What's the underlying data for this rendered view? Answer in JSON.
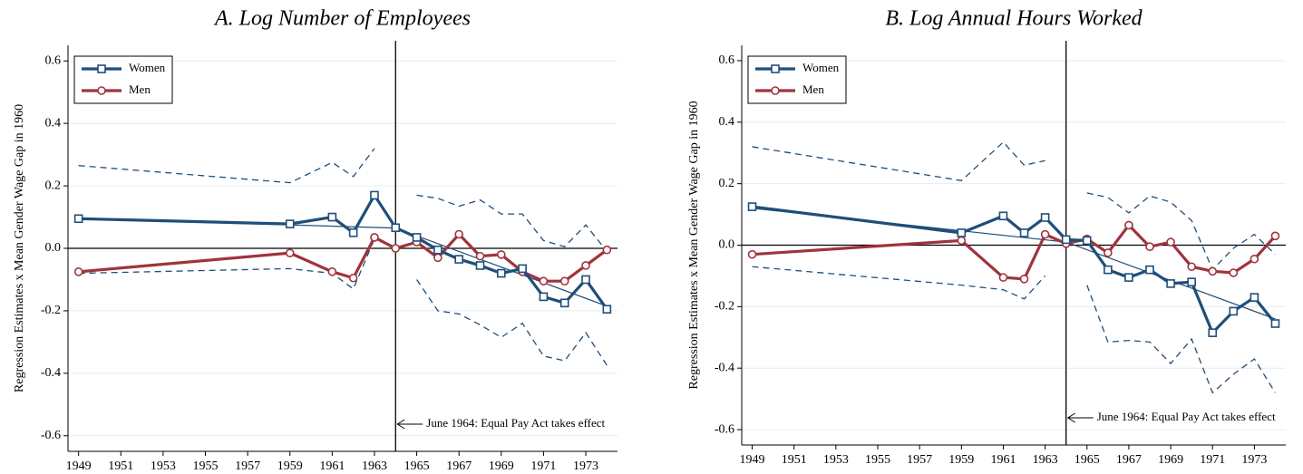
{
  "chart_data": [
    {
      "type": "line",
      "title": "A.   Log Number of Employees",
      "ylabel": "Regression Estimates x Mean Gender Wage Gap in 1960",
      "x": [
        1949,
        1959,
        1961,
        1962,
        1963,
        1964,
        1965,
        1966,
        1967,
        1968,
        1969,
        1970,
        1971,
        1972,
        1973,
        1974
      ],
      "series": [
        {
          "name": "Women",
          "color": "#1f4e79",
          "marker": "square",
          "values": [
            0.095,
            0.078,
            0.1,
            0.05,
            0.17,
            0.066,
            0.035,
            -0.005,
            -0.035,
            -0.055,
            -0.08,
            -0.065,
            -0.155,
            -0.175,
            -0.1,
            -0.195
          ]
        },
        {
          "name": "Men",
          "color": "#a0333d",
          "marker": "circle",
          "values": [
            -0.075,
            -0.015,
            -0.075,
            -0.095,
            0.035,
            0,
            0.02,
            -0.03,
            0.045,
            -0.025,
            -0.02,
            -0.075,
            -0.105,
            -0.105,
            -0.055,
            -0.005
          ]
        }
      ],
      "ci_upper": [
        0.265,
        0.21,
        0.275,
        0.23,
        0.32,
        null,
        0.17,
        0.16,
        0.135,
        0.155,
        0.11,
        0.11,
        0.025,
        0.005,
        0.075,
        -0.01
      ],
      "ci_lower": [
        -0.08,
        -0.065,
        -0.08,
        -0.13,
        0.03,
        null,
        -0.1,
        -0.2,
        -0.21,
        -0.245,
        -0.285,
        -0.24,
        -0.345,
        -0.36,
        -0.27,
        -0.375
      ],
      "trend": {
        "x": [
          1949,
          1964,
          1974
        ],
        "values": [
          0.095,
          0.065,
          -0.185
        ]
      },
      "vline": 1964,
      "annotation": "June 1964: Equal Pay Act takes effect",
      "xlim": [
        1948.5,
        1974.5
      ],
      "xticks": [
        1949,
        1951,
        1953,
        1955,
        1957,
        1959,
        1961,
        1963,
        1965,
        1967,
        1969,
        1971,
        1973
      ],
      "ylim": [
        -0.65,
        0.65
      ],
      "yticks": [
        -0.6,
        -0.4,
        -0.2,
        {
          "value": 0,
          "label": "0.0"
        },
        0.2,
        0.4,
        0.6
      ],
      "grid": true,
      "legend": "top-left"
    },
    {
      "type": "line",
      "title": "B.   Log Annual Hours Worked",
      "ylabel": "Regression Estimates x Mean Gender Wage Gap in 1960",
      "x": [
        1949,
        1959,
        1961,
        1962,
        1963,
        1964,
        1965,
        1966,
        1967,
        1968,
        1969,
        1970,
        1971,
        1972,
        1973,
        1974
      ],
      "series": [
        {
          "name": "Women",
          "color": "#1f4e79",
          "marker": "square",
          "values": [
            0.125,
            0.04,
            0.095,
            0.04,
            0.09,
            0.018,
            0.015,
            -0.08,
            -0.105,
            -0.08,
            -0.125,
            -0.12,
            -0.285,
            -0.215,
            -0.17,
            -0.255
          ]
        },
        {
          "name": "Men",
          "color": "#a0333d",
          "marker": "circle",
          "values": [
            -0.03,
            0.015,
            -0.105,
            -0.11,
            0.035,
            0.005,
            0.02,
            -0.025,
            0.065,
            -0.005,
            0.01,
            -0.07,
            -0.085,
            -0.09,
            -0.045,
            0.03
          ]
        }
      ],
      "ci_upper": [
        0.32,
        0.21,
        0.335,
        0.26,
        0.275,
        null,
        0.17,
        0.155,
        0.105,
        0.16,
        0.14,
        0.08,
        -0.08,
        -0.01,
        0.035,
        -0.03
      ],
      "ci_lower": [
        -0.07,
        -0.13,
        -0.145,
        -0.175,
        -0.1,
        null,
        -0.13,
        -0.315,
        -0.31,
        -0.315,
        -0.385,
        -0.305,
        -0.48,
        -0.42,
        -0.37,
        -0.48
      ],
      "trend": {
        "x": [
          1949,
          1964,
          1974
        ],
        "values": [
          0.12,
          0.01,
          -0.24
        ]
      },
      "vline": 1964,
      "annotation": "June 1964: Equal Pay Act takes effect",
      "xlim": [
        1948.5,
        1974.5
      ],
      "xticks": [
        1949,
        1951,
        1953,
        1955,
        1957,
        1959,
        1961,
        1963,
        1965,
        1967,
        1969,
        1971,
        1973
      ],
      "ylim": [
        -0.65,
        0.65
      ],
      "yticks": [
        -0.6,
        -0.4,
        -0.2,
        {
          "value": 0,
          "label": "0.0"
        },
        0.2,
        0.4,
        0.6
      ],
      "grid": true,
      "legend": "top-left"
    }
  ]
}
